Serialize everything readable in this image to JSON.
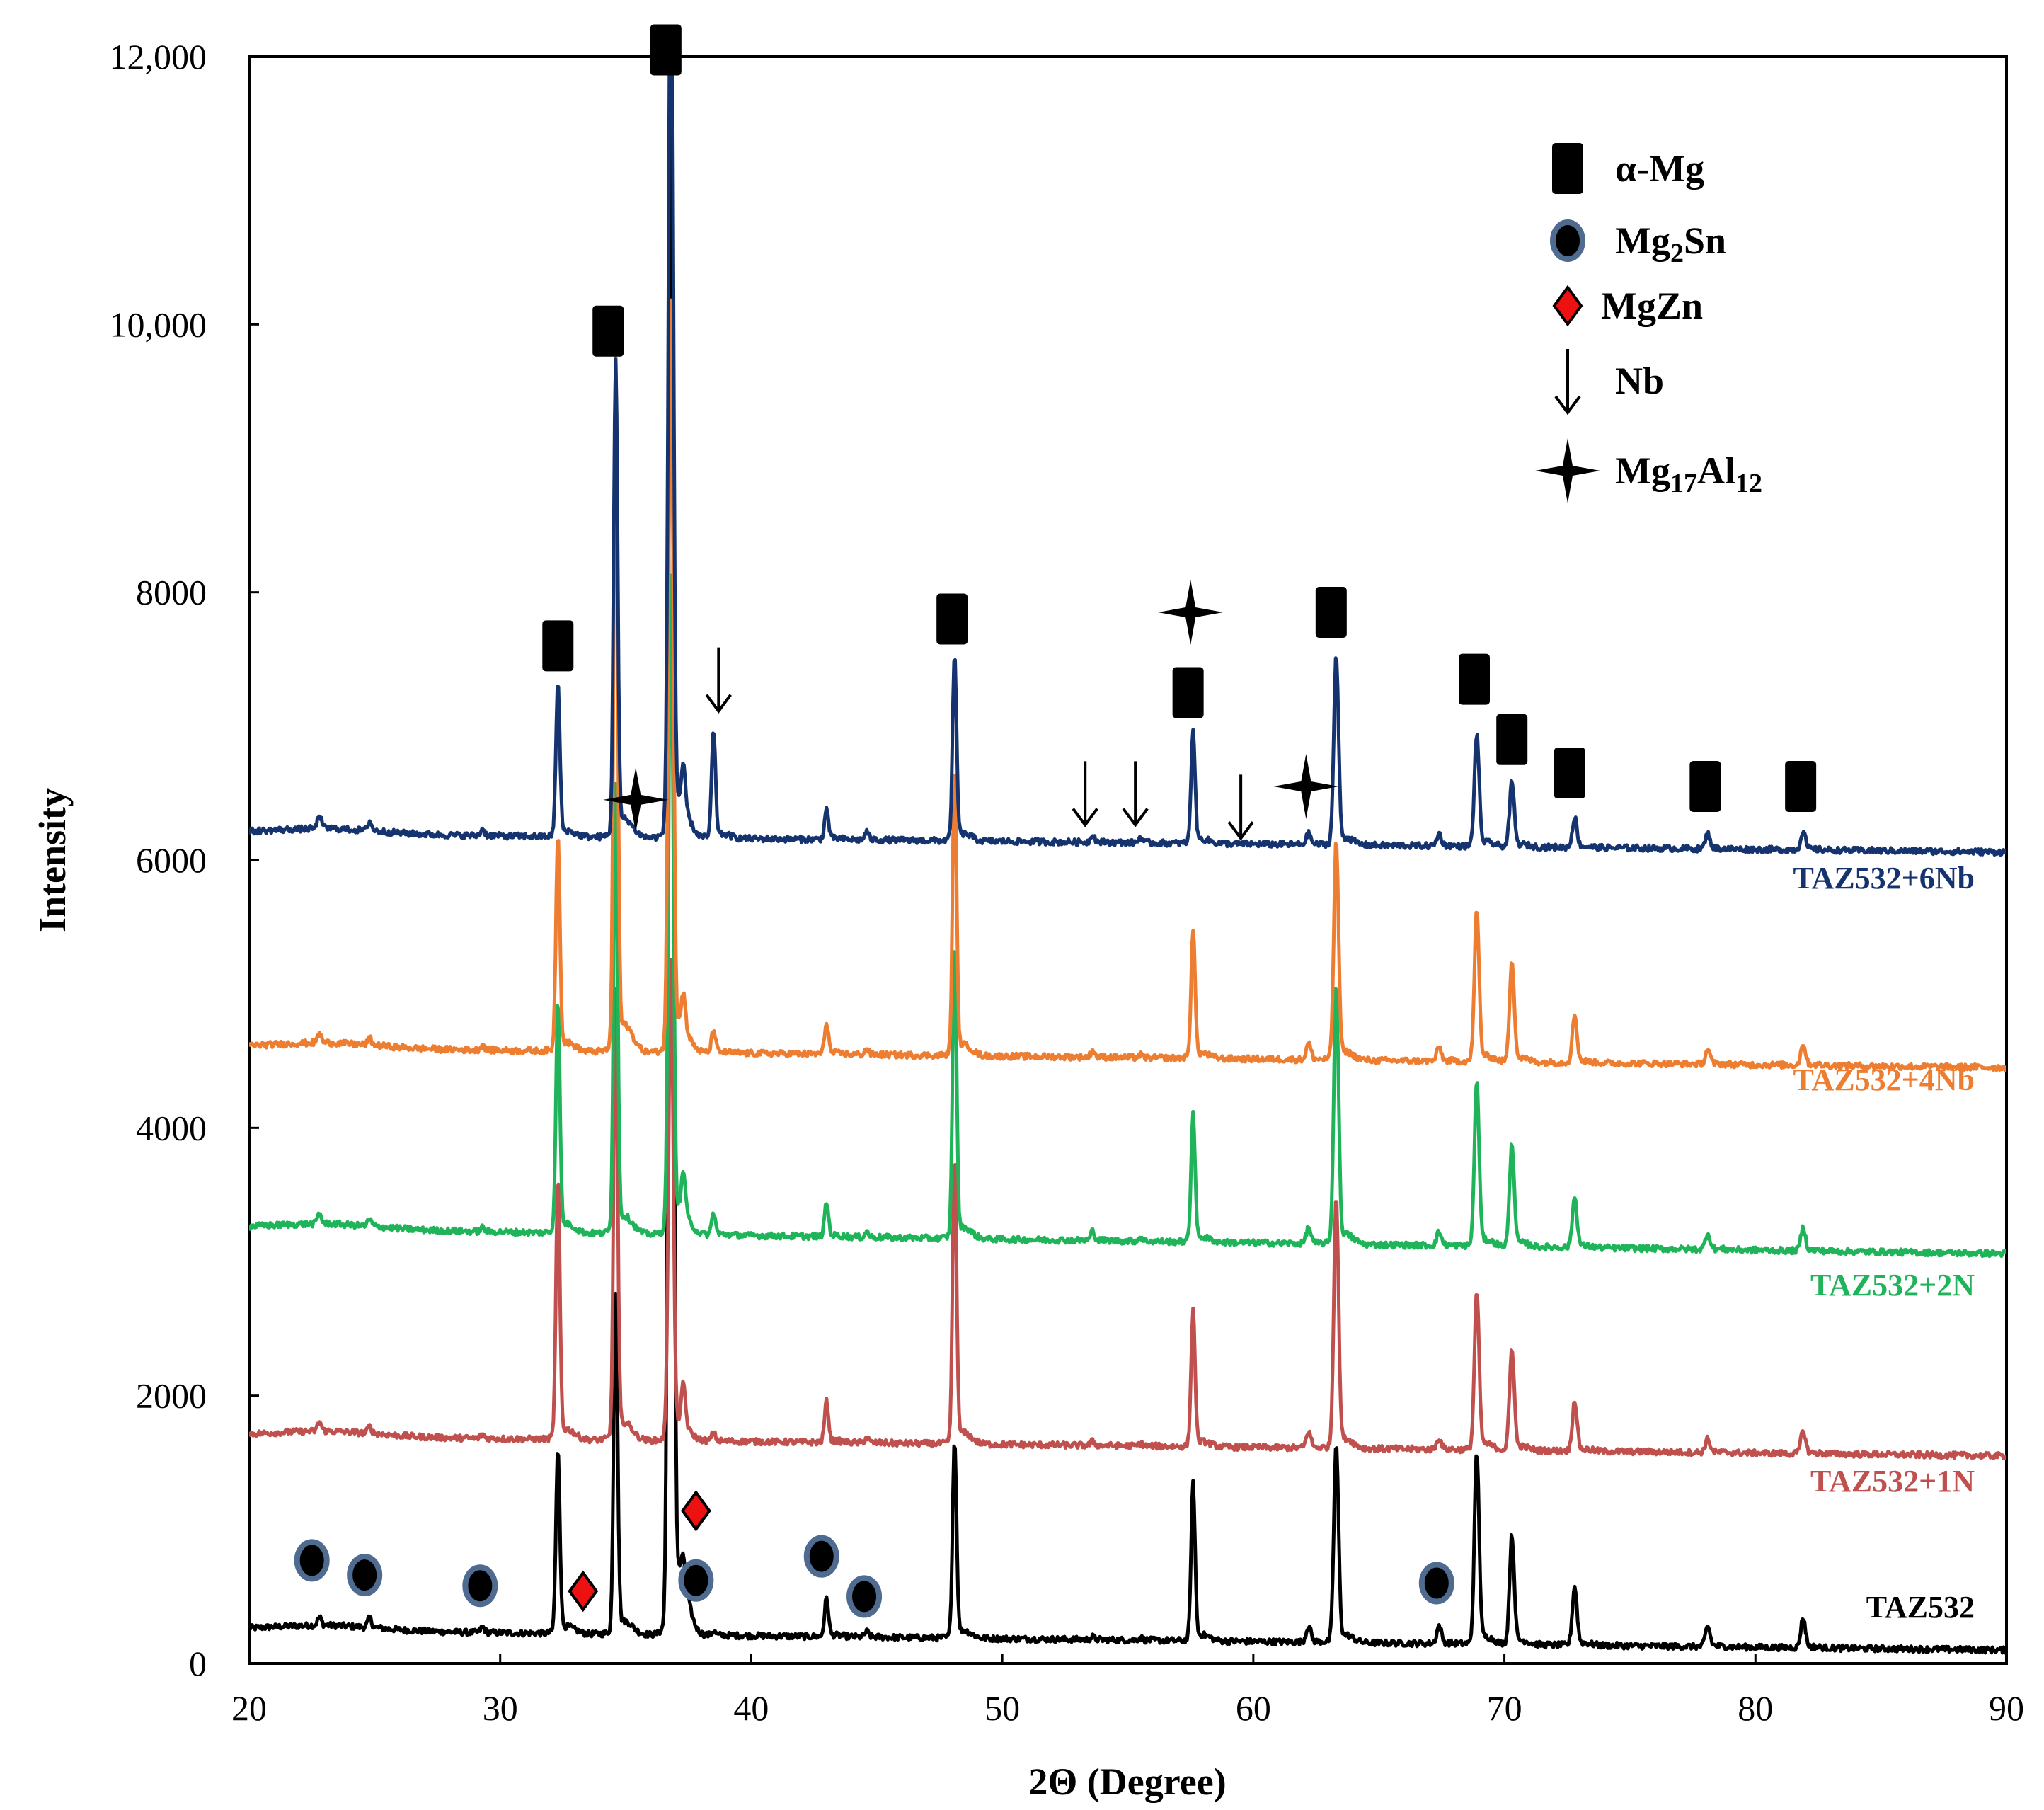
{
  "chart_data": {
    "type": "line",
    "title": "",
    "xlabel": "2Θ (Degree)",
    "ylabel": "Intensity",
    "xlim": [
      20,
      90
    ],
    "ylim": [
      0,
      12000
    ],
    "x_ticks": [
      "20",
      "30",
      "40",
      "50",
      "60",
      "70",
      "80",
      "90"
    ],
    "y_ticks": [
      "0",
      "2000",
      "4000",
      "6000",
      "8000",
      "10,000",
      "12,000"
    ],
    "peaks_2theta": [
      22.8,
      24.8,
      29.3,
      32.3,
      34.6,
      36.8,
      37.3,
      38.5,
      43.0,
      44.6,
      48.1,
      53.6,
      55.5,
      57.6,
      62.2,
      63.3,
      67.4,
      68.9,
      70.3,
      72.8,
      78.1,
      81.9
    ],
    "series": [
      {
        "name": "TAZ532",
        "color": "#000000",
        "baseline_start": 250,
        "baseline_end": 100,
        "peak_heights": [
          60,
          70,
          40,
          1350,
          2500,
          12000,
          150,
          30,
          280,
          40,
          1450,
          20,
          20,
          1150,
          120,
          1450,
          130,
          1400,
          800,
          430,
          150,
          220
        ]
      },
      {
        "name": "TAZ532+1N",
        "color": "#c0504d",
        "baseline_start": 1700,
        "baseline_end": 1550,
        "peak_heights": [
          70,
          50,
          30,
          1900,
          3300,
          3500,
          300,
          60,
          300,
          40,
          2100,
          30,
          20,
          1000,
          120,
          1850,
          80,
          1150,
          750,
          370,
          100,
          170
        ]
      },
      {
        "name": "TAZ532+2N",
        "color": "#1fb45a",
        "baseline_start": 3250,
        "baseline_end": 3060,
        "peak_heights": [
          80,
          50,
          30,
          1700,
          3300,
          4800,
          300,
          160,
          250,
          40,
          2150,
          70,
          30,
          950,
          120,
          1900,
          100,
          1200,
          750,
          370,
          120,
          170
        ]
      },
      {
        "name": "TAZ532+4Nb",
        "color": "#ed7d31",
        "baseline_start": 4600,
        "baseline_end": 4450,
        "peak_heights": [
          70,
          50,
          40,
          1600,
          5100,
          5500,
          250,
          170,
          230,
          40,
          2100,
          50,
          20,
          950,
          120,
          1600,
          100,
          1100,
          750,
          350,
          110,
          160
        ]
      },
      {
        "name": "TAZ532+6Nb",
        "color": "#15346f",
        "baseline_start": 6200,
        "baseline_end": 6060,
        "peak_heights": [
          100,
          70,
          50,
          1120,
          3500,
          7000,
          280,
          780,
          220,
          60,
          1350,
          60,
          40,
          830,
          80,
          1380,
          90,
          820,
          470,
          220,
          110,
          140
        ]
      }
    ],
    "legend": [
      {
        "symbol": "square",
        "label": "α-Mg",
        "sub": "",
        "post": ""
      },
      {
        "symbol": "circle",
        "label": "Mg",
        "sub": "2",
        "post": "Sn"
      },
      {
        "symbol": "diamond",
        "label": "MgZn",
        "sub": "",
        "post": ""
      },
      {
        "symbol": "arrow",
        "label": "Nb",
        "sub": "",
        "post": ""
      },
      {
        "symbol": "star",
        "label": "Mg",
        "sub": "17",
        "post": "Al",
        "sub2": "12"
      }
    ],
    "phase_markers": [
      {
        "symbol": "square",
        "x": 32.3,
        "y": 7600
      },
      {
        "symbol": "square",
        "x": 34.3,
        "y": 9950
      },
      {
        "symbol": "square",
        "x": 36.6,
        "y": 12050
      },
      {
        "symbol": "square",
        "x": 48.0,
        "y": 7800
      },
      {
        "symbol": "square",
        "x": 57.4,
        "y": 7250
      },
      {
        "symbol": "square",
        "x": 63.1,
        "y": 7850
      },
      {
        "symbol": "square",
        "x": 68.8,
        "y": 7350
      },
      {
        "symbol": "square",
        "x": 70.3,
        "y": 6900
      },
      {
        "symbol": "square",
        "x": 72.6,
        "y": 6650
      },
      {
        "symbol": "square",
        "x": 78.0,
        "y": 6550
      },
      {
        "symbol": "square",
        "x": 81.8,
        "y": 6550
      },
      {
        "symbol": "star",
        "x": 35.4,
        "y": 6450
      },
      {
        "symbol": "star",
        "x": 57.5,
        "y": 7850
      },
      {
        "symbol": "star",
        "x": 62.1,
        "y": 6550
      },
      {
        "symbol": "arrow",
        "x": 38.7,
        "y": 7350
      },
      {
        "symbol": "arrow",
        "x": 53.3,
        "y": 6500
      },
      {
        "symbol": "arrow",
        "x": 55.3,
        "y": 6500
      },
      {
        "symbol": "arrow",
        "x": 59.5,
        "y": 6400
      },
      {
        "symbol": "circle",
        "x": 22.5,
        "y": 770
      },
      {
        "symbol": "circle",
        "x": 24.6,
        "y": 660
      },
      {
        "symbol": "circle",
        "x": 29.2,
        "y": 580
      },
      {
        "symbol": "circle",
        "x": 37.8,
        "y": 620
      },
      {
        "symbol": "circle",
        "x": 42.8,
        "y": 800
      },
      {
        "symbol": "circle",
        "x": 44.5,
        "y": 500
      },
      {
        "symbol": "circle",
        "x": 67.3,
        "y": 600
      },
      {
        "symbol": "diamond",
        "x": 33.3,
        "y": 540
      },
      {
        "symbol": "diamond",
        "x": 37.8,
        "y": 1140
      }
    ]
  }
}
